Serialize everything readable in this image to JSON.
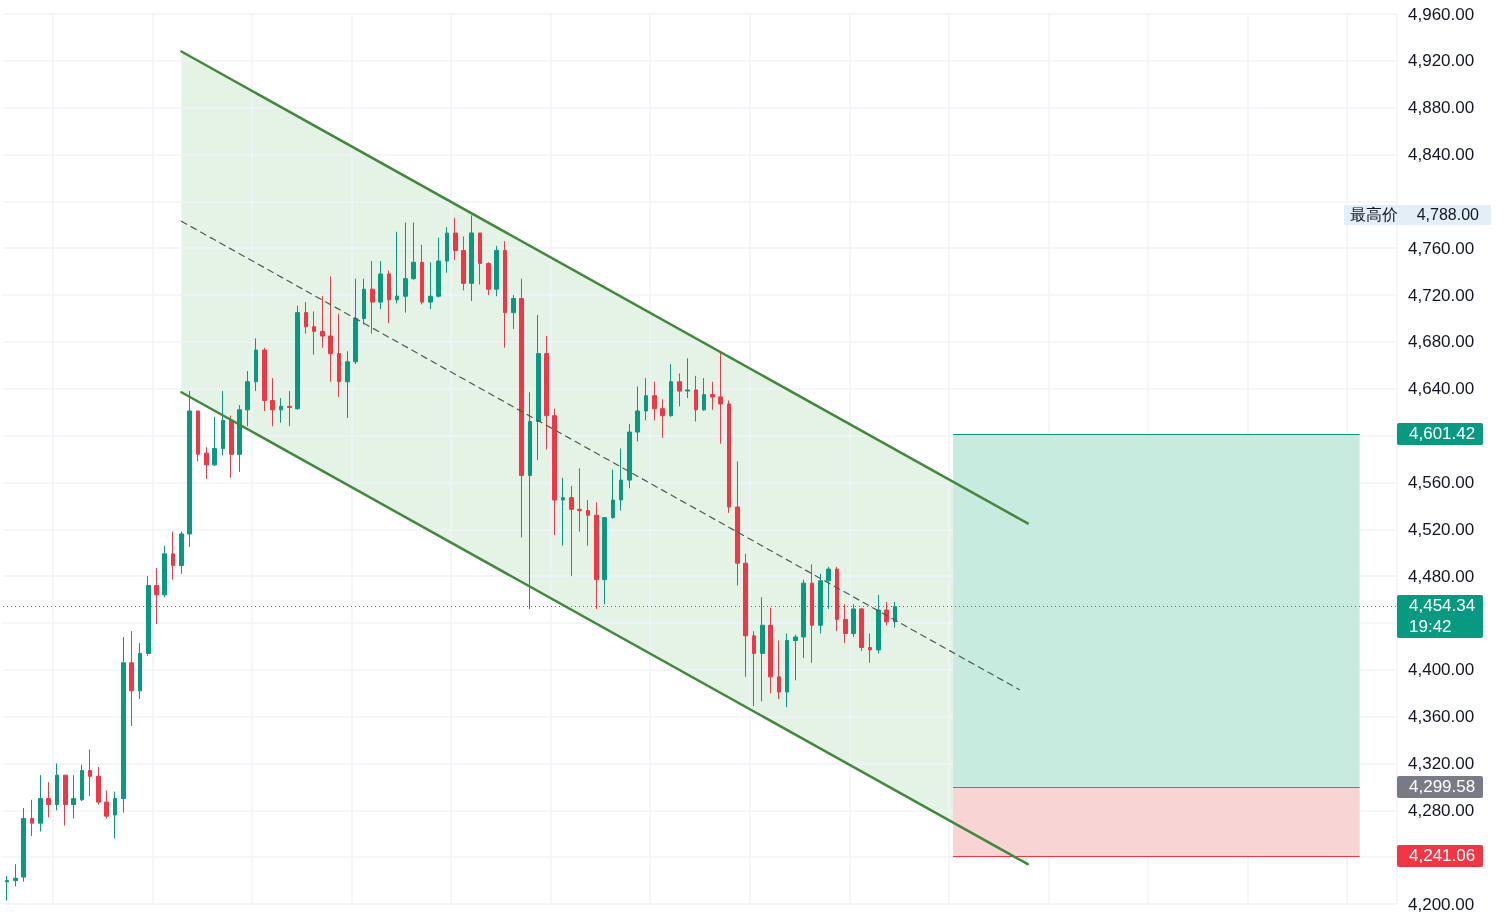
{
  "chart_data": {
    "type": "candlestick",
    "categories": [
      null,
      null,
      null,
      null,
      null,
      null,
      null,
      null,
      null,
      null,
      null,
      null,
      null,
      null,
      null,
      null,
      null,
      null,
      null,
      null,
      null,
      null,
      null,
      null,
      null,
      null,
      null,
      null,
      null,
      null,
      null,
      null,
      null,
      null,
      null,
      null,
      null,
      null,
      null,
      null,
      null,
      null,
      null,
      null,
      null,
      null,
      null,
      null,
      null,
      null,
      null,
      null,
      null,
      null,
      null,
      null,
      null,
      null,
      null,
      null,
      null,
      null,
      null,
      null,
      null,
      null,
      null,
      null,
      null,
      null,
      null,
      null,
      null,
      null,
      null,
      null,
      null,
      null,
      null,
      null,
      null,
      null,
      null,
      null,
      null,
      null,
      null,
      null,
      null,
      null,
      null,
      null,
      null,
      null,
      null,
      null,
      null,
      null,
      null,
      null,
      null,
      null,
      null,
      null,
      null,
      null,
      null,
      null,
      null,
      null,
      null,
      null,
      null,
      null,
      null,
      null,
      null,
      null,
      null,
      null,
      null,
      null,
      null,
      null,
      null,
      null,
      null,
      null,
      null,
      null,
      null,
      null,
      null,
      null,
      null,
      null,
      null,
      null,
      null,
      null,
      null,
      null,
      null,
      null,
      null,
      null,
      null,
      null,
      null,
      null,
      null,
      null,
      null,
      null,
      null,
      null,
      null,
      null,
      null,
      null,
      null,
      null,
      null,
      null,
      null,
      null,
      null,
      null
    ],
    "ylim": [
      4200,
      4960
    ],
    "yticks": [
      {
        "value": 4200,
        "label": "4,200.00"
      },
      {
        "value": 4240,
        "label": null
      },
      {
        "value": 4280,
        "label": "4,280.00"
      },
      {
        "value": 4320,
        "label": "4,320.00"
      },
      {
        "value": 4360,
        "label": "4,360.00"
      },
      {
        "value": 4400,
        "label": "4,400.00"
      },
      {
        "value": 4440,
        "label": null
      },
      {
        "value": 4480,
        "label": "4,480.00"
      },
      {
        "value": 4520,
        "label": "4,520.00"
      },
      {
        "value": 4560,
        "label": "4,560.00"
      },
      {
        "value": 4600,
        "label": null
      },
      {
        "value": 4640,
        "label": "4,640.00"
      },
      {
        "value": 4680,
        "label": "4,680.00"
      },
      {
        "value": 4720,
        "label": "4,720.00"
      },
      {
        "value": 4760,
        "label": "4,760.00"
      },
      {
        "value": 4800,
        "label": null
      },
      {
        "value": 4840,
        "label": "4,840.00"
      },
      {
        "value": 4880,
        "label": "4,880.00"
      },
      {
        "value": 4920,
        "label": "4,920.00"
      },
      {
        "value": 4960,
        "label": "4,960.00"
      }
    ],
    "grid": true,
    "tick_labels": "y",
    "annotations": [
      "最高价 4,788.00",
      "19:42"
    ],
    "bands": [
      {
        "axis": "y",
        "from": 4299.58,
        "to": 4601.42,
        "color": "#c8ebe0"
      },
      {
        "axis": "y",
        "from": 4241.06,
        "to": 4299.58,
        "color": "#f9d4d4"
      }
    ],
    "ref_lines": [
      {
        "axis": "y",
        "value": 4601.42,
        "label": "4,601.42",
        "color": "#089981"
      },
      {
        "axis": "y",
        "value": 4454.34,
        "label": "4,454.34",
        "color": "#089981",
        "line_style": "dotted"
      },
      {
        "axis": "y",
        "value": 4299.58,
        "label": "4,299.58",
        "color": "#787b86"
      },
      {
        "axis": "y",
        "value": 4241.06,
        "label": "4,241.06",
        "color": "#f23645"
      }
    ],
    "series": [
      {
        "ohlc": [
          [
            4219,
            4224,
            4203,
            4220
          ],
          [
            4220,
            4234,
            4215,
            4222
          ],
          [
            4223,
            4282,
            4219,
            4273
          ],
          [
            4273,
            4289,
            4258,
            4269
          ],
          [
            4269,
            4310,
            4262,
            4290
          ],
          [
            4290,
            4304,
            4274,
            4285
          ],
          [
            4285,
            4320,
            4280,
            4310
          ],
          [
            4310,
            4310,
            4267,
            4285
          ],
          [
            4285,
            4310,
            4273,
            4290
          ],
          [
            4289,
            4319,
            4288,
            4314
          ],
          [
            4314,
            4332,
            4292,
            4309
          ],
          [
            4309,
            4317,
            4285,
            4287
          ],
          [
            4287,
            4297,
            4273,
            4275
          ],
          [
            4276,
            4296,
            4256,
            4290
          ],
          [
            4290,
            4428,
            4278,
            4406
          ],
          [
            4406,
            4433,
            4352,
            4382
          ],
          [
            4382,
            4423,
            4375,
            4414
          ],
          [
            4414,
            4480,
            4412,
            4472
          ],
          [
            4472,
            4487,
            4439,
            4464
          ],
          [
            4464,
            4506,
            4462,
            4499
          ],
          [
            4499,
            4518,
            4477,
            4489
          ],
          [
            4489,
            4518,
            4482,
            4516
          ],
          [
            4516,
            4638,
            4505,
            4621
          ],
          [
            4621,
            4621,
            4578,
            4584
          ],
          [
            4585,
            4590,
            4563,
            4575
          ],
          [
            4575,
            4616,
            4574,
            4589
          ],
          [
            4589,
            4638,
            4583,
            4613
          ],
          [
            4613,
            4617,
            4564,
            4584
          ],
          [
            4584,
            4626,
            4569,
            4622
          ],
          [
            4622,
            4655,
            4608,
            4646
          ],
          [
            4646,
            4683,
            4638,
            4673
          ],
          [
            4673,
            4675,
            4621,
            4630
          ],
          [
            4630,
            4649,
            4608,
            4622
          ],
          [
            4622,
            4632,
            4611,
            4625
          ],
          [
            4625,
            4638,
            4608,
            4624
          ],
          [
            4623,
            4711,
            4622,
            4705
          ],
          [
            4705,
            4714,
            4687,
            4693
          ],
          [
            4693,
            4706,
            4669,
            4689
          ],
          [
            4689,
            4719,
            4675,
            4685
          ],
          [
            4685,
            4736,
            4646,
            4670
          ],
          [
            4670,
            4704,
            4633,
            4646
          ],
          [
            4646,
            4672,
            4615,
            4663
          ],
          [
            4663,
            4734,
            4661,
            4700
          ],
          [
            4700,
            4734,
            4695,
            4725
          ],
          [
            4725,
            4749,
            4687,
            4714
          ],
          [
            4714,
            4749,
            4708,
            4738
          ],
          [
            4738,
            4741,
            4696,
            4716
          ],
          [
            4716,
            4774,
            4713,
            4719
          ],
          [
            4719,
            4782,
            4705,
            4734
          ],
          [
            4734,
            4782,
            4733,
            4748
          ],
          [
            4748,
            4763,
            4712,
            4714
          ],
          [
            4714,
            4748,
            4708,
            4719
          ],
          [
            4719,
            4769,
            4718,
            4749
          ],
          [
            4749,
            4778,
            4739,
            4773
          ],
          [
            4773,
            4786,
            4750,
            4758
          ],
          [
            4758,
            4770,
            4724,
            4730
          ],
          [
            4730,
            4788,
            4715,
            4773
          ],
          [
            4773,
            4773,
            4729,
            4747
          ],
          [
            4747,
            4748,
            4720,
            4725
          ],
          [
            4725,
            4762,
            4719,
            4758
          ],
          [
            4758,
            4766,
            4675,
            4705
          ],
          [
            4705,
            4720,
            4691,
            4717
          ],
          [
            4717,
            4734,
            4513,
            4566
          ],
          [
            4566,
            4637,
            4452,
            4612
          ],
          [
            4612,
            4703,
            4579,
            4670
          ],
          [
            4670,
            4685,
            4588,
            4617
          ],
          [
            4617,
            4623,
            4515,
            4545
          ],
          [
            4545,
            4564,
            4506,
            4547
          ],
          [
            4547,
            4557,
            4480,
            4537
          ],
          [
            4537,
            4572,
            4518,
            4536
          ],
          [
            4536,
            4545,
            4506,
            4532
          ],
          [
            4532,
            4543,
            4452,
            4477
          ],
          [
            4477,
            4530,
            4456,
            4530
          ],
          [
            4530,
            4571,
            4529,
            4545
          ],
          [
            4545,
            4589,
            4536,
            4562
          ],
          [
            4562,
            4610,
            4555,
            4603
          ],
          [
            4603,
            4642,
            4595,
            4621
          ],
          [
            4621,
            4649,
            4613,
            4634
          ],
          [
            4634,
            4646,
            4613,
            4623
          ],
          [
            4623,
            4631,
            4598,
            4617
          ],
          [
            4617,
            4661,
            4616,
            4646
          ],
          [
            4646,
            4653,
            4625,
            4638
          ],
          [
            4638,
            4666,
            4632,
            4639
          ],
          [
            4639,
            4651,
            4612,
            4622
          ],
          [
            4622,
            4649,
            4621,
            4635
          ],
          [
            4635,
            4646,
            4622,
            4633
          ],
          [
            4633,
            4671,
            4593,
            4627
          ],
          [
            4627,
            4630,
            4534,
            4539
          ],
          [
            4539,
            4578,
            4472,
            4491
          ],
          [
            4491,
            4499,
            4394,
            4429
          ],
          [
            4429,
            4433,
            4369,
            4414
          ],
          [
            4414,
            4462,
            4373,
            4438
          ],
          [
            4438,
            4453,
            4380,
            4394
          ],
          [
            4394,
            4425,
            4375,
            4381
          ],
          [
            4381,
            4431,
            4368,
            4425
          ],
          [
            4425,
            4430,
            4391,
            4428
          ],
          [
            4428,
            4477,
            4410,
            4474
          ],
          [
            4474,
            4490,
            4406,
            4438
          ],
          [
            4438,
            4482,
            4431,
            4476
          ],
          [
            4476,
            4488,
            4452,
            4486
          ],
          [
            4486,
            4488,
            4433,
            4443
          ],
          [
            4443,
            4456,
            4423,
            4431
          ],
          [
            4431,
            4456,
            4428,
            4452
          ],
          [
            4452,
            4453,
            4416,
            4419
          ],
          [
            4419,
            4431,
            4406,
            4417
          ],
          [
            4417,
            4464,
            4414,
            4451
          ],
          [
            4451,
            4458,
            4438,
            4441
          ],
          [
            4441,
            4458,
            4436,
            4454
          ],
          null,
          null,
          null,
          null,
          null,
          null,
          null,
          null,
          null,
          null,
          null,
          null,
          null,
          null,
          null,
          null,
          null,
          null,
          null,
          null,
          null,
          null,
          null,
          null,
          null,
          null,
          null,
          null,
          null,
          null,
          null,
          null,
          null,
          null,
          null,
          null,
          null,
          null,
          null,
          null,
          null,
          null,
          null,
          null,
          null,
          null,
          null,
          null,
          null,
          null,
          null,
          null,
          null,
          null,
          null,
          null,
          null,
          null,
          null,
          null
        ],
        "colors": [
          "#089981",
          "#089981",
          "#089981",
          "#f23645",
          "#089981",
          "#f23645",
          "#089981",
          "#f23645",
          "#089981",
          "#089981",
          "#f23645",
          "#f23645",
          "#f23645",
          "#089981",
          "#089981",
          "#f23645",
          "#089981",
          "#089981",
          "#f23645",
          "#089981",
          "#f23645",
          "#089981",
          "#089981",
          "#f23645",
          "#f23645",
          "#089981",
          "#089981",
          "#f23645",
          "#089981",
          "#089981",
          "#089981",
          "#f23645",
          "#f23645",
          "#089981",
          "#f23645",
          "#089981",
          "#f23645",
          "#f23645",
          "#f23645",
          "#f23645",
          "#f23645",
          "#089981",
          "#089981",
          "#089981",
          "#f23645",
          "#089981",
          "#f23645",
          "#089981",
          "#089981",
          "#089981",
          "#f23645",
          "#089981",
          "#089981",
          "#089981",
          "#f23645",
          "#f23645",
          "#089981",
          "#f23645",
          "#f23645",
          "#089981",
          "#f23645",
          "#089981",
          "#f23645",
          "#089981",
          "#089981",
          "#f23645",
          "#f23645",
          "#089981",
          "#f23645",
          "#f23645",
          "#f23645",
          "#f23645",
          "#089981",
          "#089981",
          "#089981",
          "#089981",
          "#089981",
          "#089981",
          "#f23645",
          "#f23645",
          "#089981",
          "#f23645",
          "#089981",
          "#f23645",
          "#089981",
          "#f23645",
          "#f23645",
          "#f23645",
          "#f23645",
          "#f23645",
          "#f23645",
          "#089981",
          "#f23645",
          "#f23645",
          "#089981",
          "#089981",
          "#089981",
          "#f23645",
          "#089981",
          "#089981",
          "#f23645",
          "#f23645",
          "#089981",
          "#f23645",
          "#f23645",
          "#089981",
          "#f23645",
          "#089981",
          null,
          null,
          null,
          null,
          null,
          null,
          null,
          null,
          null,
          null,
          null,
          null,
          null,
          null,
          null,
          null,
          null,
          null,
          null,
          null,
          null,
          null,
          null,
          null,
          null,
          null,
          null,
          null,
          null,
          null,
          null,
          null,
          null,
          null,
          null,
          null,
          null,
          null,
          null,
          null,
          null,
          null,
          null,
          null,
          null,
          null,
          null,
          null,
          null,
          null,
          null,
          null,
          null,
          null,
          null,
          null,
          null,
          null,
          null,
          null
        ]
      },
      {
        "type": "line",
        "color": "#43883d",
        "line_style": "solid",
        "values": [
          null,
          null,
          null,
          null,
          null,
          null,
          null,
          null,
          null,
          null,
          null,
          null,
          null,
          null,
          null,
          null,
          null,
          null,
          null,
          null,
          null,
          4928,
          null,
          null,
          null,
          null,
          null,
          null,
          null,
          null,
          null,
          null,
          null,
          null,
          null,
          null,
          null,
          null,
          null,
          null,
          null,
          null,
          null,
          null,
          null,
          null,
          null,
          null,
          null,
          null,
          null,
          null,
          null,
          null,
          null,
          null,
          null,
          null,
          null,
          null,
          null,
          null,
          null,
          null,
          null,
          null,
          null,
          null,
          null,
          null,
          null,
          null,
          null,
          null,
          null,
          null,
          null,
          null,
          null,
          null,
          null,
          null,
          null,
          null,
          null,
          null,
          null,
          null,
          null,
          null,
          null,
          null,
          null,
          null,
          null,
          null,
          null,
          null,
          null,
          null,
          null,
          null,
          null,
          null,
          null,
          null,
          null,
          null,
          null,
          null,
          null,
          null,
          null,
          null,
          null,
          null,
          null,
          null,
          null,
          null,
          null,
          null,
          null,
          4525,
          null,
          null,
          null,
          null,
          null,
          null,
          null,
          null,
          null,
          null,
          null,
          null,
          null,
          null,
          null,
          null,
          null,
          null,
          null,
          null,
          null,
          null,
          null,
          null,
          null,
          null,
          null,
          null,
          null,
          null,
          null,
          null,
          null,
          null,
          null,
          null,
          null,
          null,
          null,
          null,
          null,
          null,
          null,
          null
        ]
      },
      {
        "type": "line",
        "color": "#43883d",
        "line_style": "solid",
        "values": [
          null,
          null,
          null,
          null,
          null,
          null,
          null,
          null,
          null,
          null,
          null,
          null,
          null,
          null,
          null,
          null,
          null,
          null,
          null,
          null,
          null,
          4637,
          null,
          null,
          null,
          null,
          null,
          null,
          null,
          null,
          null,
          null,
          null,
          null,
          null,
          null,
          null,
          null,
          null,
          null,
          null,
          null,
          null,
          null,
          null,
          null,
          null,
          null,
          null,
          null,
          null,
          null,
          null,
          null,
          null,
          null,
          null,
          null,
          null,
          null,
          null,
          null,
          null,
          null,
          null,
          null,
          null,
          null,
          null,
          null,
          null,
          null,
          null,
          null,
          null,
          null,
          null,
          null,
          null,
          null,
          null,
          null,
          null,
          null,
          null,
          null,
          null,
          null,
          null,
          null,
          null,
          null,
          null,
          null,
          null,
          null,
          null,
          null,
          null,
          null,
          null,
          null,
          null,
          null,
          null,
          null,
          null,
          null,
          null,
          null,
          null,
          null,
          null,
          null,
          null,
          null,
          null,
          null,
          null,
          null,
          null,
          null,
          null,
          4234,
          null,
          null,
          null,
          null,
          null,
          null,
          null,
          null,
          null,
          null,
          null,
          null,
          null,
          null,
          null,
          null,
          null,
          null,
          null,
          null,
          null,
          null,
          null,
          null,
          null,
          null,
          null,
          null,
          null,
          null,
          null,
          null,
          null,
          null,
          null,
          null,
          null,
          null,
          null,
          null,
          null,
          null,
          null,
          null
        ]
      },
      {
        "type": "line",
        "color": "#4d5a4d",
        "line_style": "dashed",
        "values": [
          null,
          null,
          null,
          null,
          null,
          null,
          null,
          null,
          null,
          null,
          null,
          null,
          null,
          null,
          null,
          null,
          null,
          null,
          null,
          null,
          null,
          4783,
          null,
          null,
          null,
          null,
          null,
          null,
          null,
          null,
          null,
          null,
          null,
          null,
          null,
          null,
          null,
          null,
          null,
          null,
          null,
          null,
          null,
          null,
          null,
          null,
          null,
          null,
          null,
          null,
          null,
          null,
          null,
          null,
          null,
          null,
          null,
          null,
          null,
          null,
          null,
          null,
          null,
          null,
          null,
          null,
          null,
          null,
          null,
          null,
          null,
          null,
          null,
          null,
          null,
          null,
          null,
          null,
          null,
          null,
          null,
          null,
          null,
          null,
          null,
          null,
          null,
          null,
          null,
          null,
          null,
          null,
          null,
          null,
          null,
          null,
          null,
          null,
          null,
          null,
          null,
          null,
          null,
          null,
          null,
          null,
          null,
          null,
          null,
          null,
          null,
          null,
          null,
          null,
          null,
          null,
          null,
          null,
          null,
          null,
          null,
          null,
          4383,
          null,
          null,
          null,
          null,
          null,
          null,
          null,
          null,
          null,
          null,
          null,
          null,
          null,
          null,
          null,
          null,
          null,
          null,
          null,
          null,
          null,
          null,
          null,
          null,
          null,
          null,
          null,
          null,
          null,
          null,
          null,
          null,
          null,
          null,
          null,
          null,
          null,
          null,
          null,
          null,
          null,
          null,
          null,
          null,
          null
        ]
      }
    ]
  }
}
